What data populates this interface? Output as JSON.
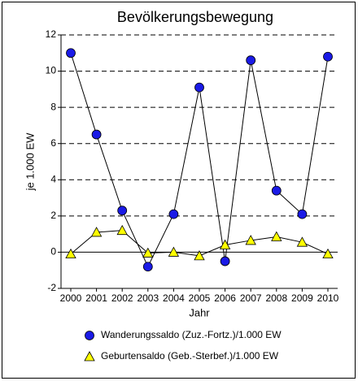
{
  "chart_data": {
    "type": "line",
    "title": "Bevölkerungsbewegung",
    "x_label": "Jahr",
    "y_label": "je 1.000 EW",
    "categories": [
      "2000",
      "2001",
      "2002",
      "2003",
      "2004",
      "2005",
      "2006",
      "2007",
      "2008",
      "2009",
      "2010"
    ],
    "series": [
      {
        "name": "Wanderungssaldo (Zuz.-Fortz.)/1.000 EW",
        "color": "#1a1ae6",
        "marker": "circle",
        "values": [
          11.0,
          6.5,
          2.3,
          -0.8,
          2.1,
          9.1,
          -0.5,
          10.6,
          3.4,
          2.1,
          10.8
        ]
      },
      {
        "name": "Geburtensaldo (Geb.-Sterbef.)/1.000 EW",
        "color": "#ffff00",
        "marker": "triangle",
        "values": [
          -0.1,
          1.1,
          1.2,
          -0.05,
          0.0,
          -0.2,
          0.4,
          0.65,
          0.85,
          0.55,
          -0.1
        ]
      }
    ],
    "ylim": [
      -2,
      12
    ],
    "yticks": [
      -2,
      0,
      2,
      4,
      6,
      8,
      10,
      12
    ],
    "grid": true
  }
}
